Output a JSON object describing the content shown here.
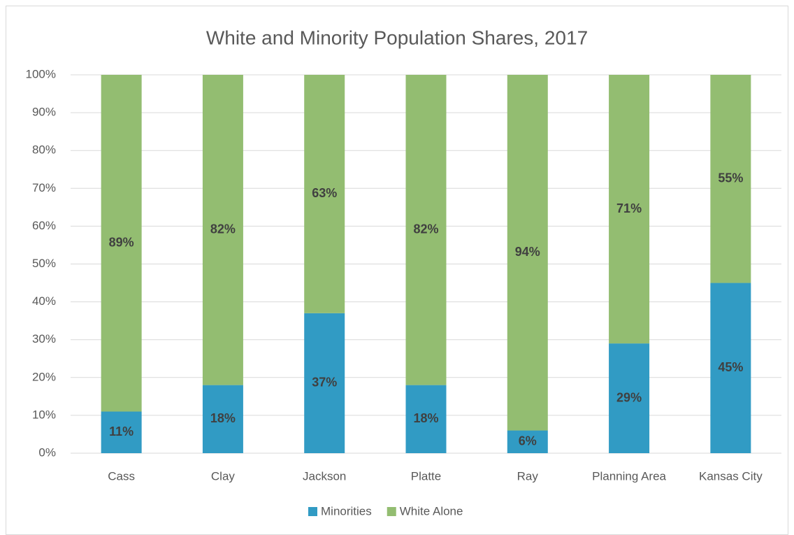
{
  "chart_data": {
    "type": "stacked_bar",
    "title": "White and Minority Population Shares, 2017",
    "categories": [
      "Cass",
      "Clay",
      "Jackson",
      "Platte",
      "Ray",
      "Planning Area",
      "Kansas City"
    ],
    "series": [
      {
        "name": "Minorities",
        "color": "#319bc4",
        "values": [
          11,
          18,
          37,
          18,
          6,
          29,
          45
        ],
        "value_labels": [
          "11%",
          "18%",
          "37%",
          "18%",
          "6%",
          "29%",
          "45%"
        ]
      },
      {
        "name": "White Alone",
        "color": "#93bd71",
        "values": [
          89,
          82,
          63,
          82,
          94,
          71,
          55
        ],
        "value_labels": [
          "89%",
          "82%",
          "63%",
          "82%",
          "94%",
          "71%",
          "55%"
        ]
      }
    ],
    "ylim": [
      0,
      100
    ],
    "yticks": [
      {
        "value": 0,
        "label": "0%"
      },
      {
        "value": 10,
        "label": "10%"
      },
      {
        "value": 20,
        "label": "20%"
      },
      {
        "value": 30,
        "label": "30%"
      },
      {
        "value": 40,
        "label": "40%"
      },
      {
        "value": 50,
        "label": "50%"
      },
      {
        "value": 60,
        "label": "60%"
      },
      {
        "value": 70,
        "label": "70%"
      },
      {
        "value": 80,
        "label": "80%"
      },
      {
        "value": 90,
        "label": "90%"
      },
      {
        "value": 100,
        "label": "100%"
      }
    ],
    "grid": true,
    "legend": "bottom"
  }
}
